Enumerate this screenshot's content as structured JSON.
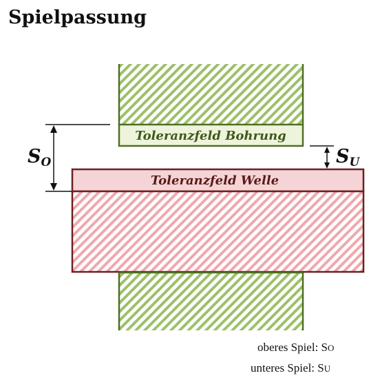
{
  "title": "Spielpassung",
  "labels": {
    "bore_zone": "Toleranzfeld Bohrung",
    "shaft_zone": "Toleranzfeld Welle"
  },
  "dimensions": {
    "upper": {
      "letter": "S",
      "subscript": "O"
    },
    "lower": {
      "letter": "S",
      "subscript": "U"
    }
  },
  "legend": {
    "upper": "oberes Spiel: S",
    "upper_sub": "O",
    "lower": "unteres Spiel: S",
    "lower_sub": "U"
  },
  "colors": {
    "bore_stroke": "#4f6f22",
    "bore_hatch": "#9dc06a",
    "bore_fill": "#eef4dc",
    "bore_text": "#3f5a1a",
    "shaft_stroke": "#6e1f1f",
    "shaft_hatch": "#f0a7ad",
    "shaft_fill": "#f4d4d6",
    "shaft_text": "#5a1a1a"
  }
}
